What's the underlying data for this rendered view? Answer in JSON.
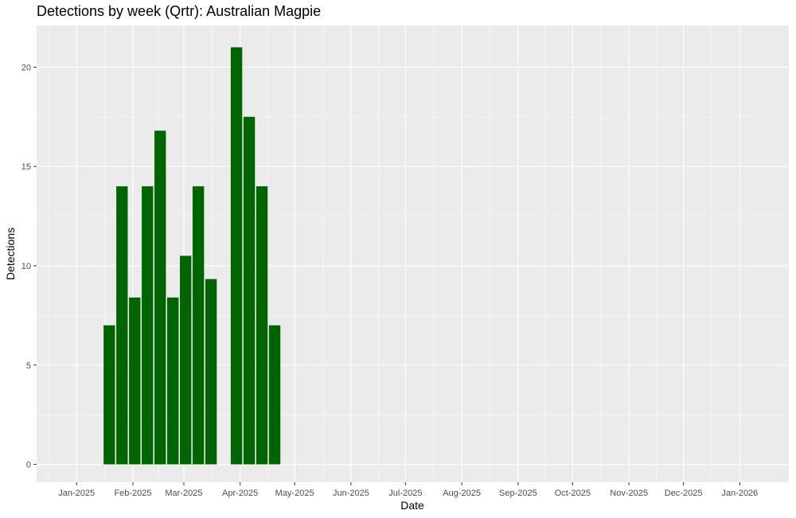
{
  "chart_data": {
    "type": "bar",
    "title": "Detections by week (Qrtr): Australian Magpie",
    "xlabel": "Date",
    "ylabel": "Detections",
    "x_axis": "date",
    "xlim": [
      "2024-12-10",
      "2026-01-28"
    ],
    "ylim": [
      -0.9,
      22.1
    ],
    "y_ticks": [
      0,
      5,
      10,
      15,
      20
    ],
    "x_ticks": [
      {
        "date": "2025-01-01",
        "label": "Jan-2025"
      },
      {
        "date": "2025-02-01",
        "label": "Feb-2025"
      },
      {
        "date": "2025-03-01",
        "label": "Mar-2025"
      },
      {
        "date": "2025-04-01",
        "label": "Apr-2025"
      },
      {
        "date": "2025-05-01",
        "label": "May-2025"
      },
      {
        "date": "2025-06-01",
        "label": "Jun-2025"
      },
      {
        "date": "2025-07-01",
        "label": "Jul-2025"
      },
      {
        "date": "2025-08-01",
        "label": "Aug-2025"
      },
      {
        "date": "2025-09-01",
        "label": "Sep-2025"
      },
      {
        "date": "2025-10-01",
        "label": "Oct-2025"
      },
      {
        "date": "2025-11-01",
        "label": "Nov-2025"
      },
      {
        "date": "2025-12-01",
        "label": "Dec-2025"
      },
      {
        "date": "2026-01-01",
        "label": "Jan-2026"
      }
    ],
    "x": [
      "2025-01-19",
      "2025-01-26",
      "2025-02-02",
      "2025-02-09",
      "2025-02-16",
      "2025-02-23",
      "2025-03-02",
      "2025-03-09",
      "2025-03-16",
      "2025-03-23",
      "2025-03-30",
      "2025-04-06",
      "2025-04-13",
      "2025-04-20"
    ],
    "values": [
      7,
      14,
      8.4,
      14,
      16.8,
      8.4,
      10.5,
      14,
      9.33,
      0,
      21,
      17.5,
      14,
      7
    ],
    "bar_color": "#006400",
    "panel_color": "#ebebeb",
    "grid": true,
    "legend": "none"
  }
}
